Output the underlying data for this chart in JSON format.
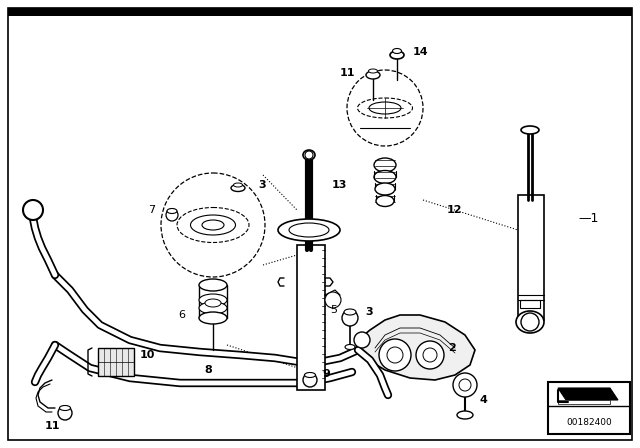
{
  "background_color": "#ffffff",
  "line_color": "#000000",
  "part_number_text": "00182400",
  "figsize": [
    6.4,
    4.48
  ],
  "dpi": 100
}
